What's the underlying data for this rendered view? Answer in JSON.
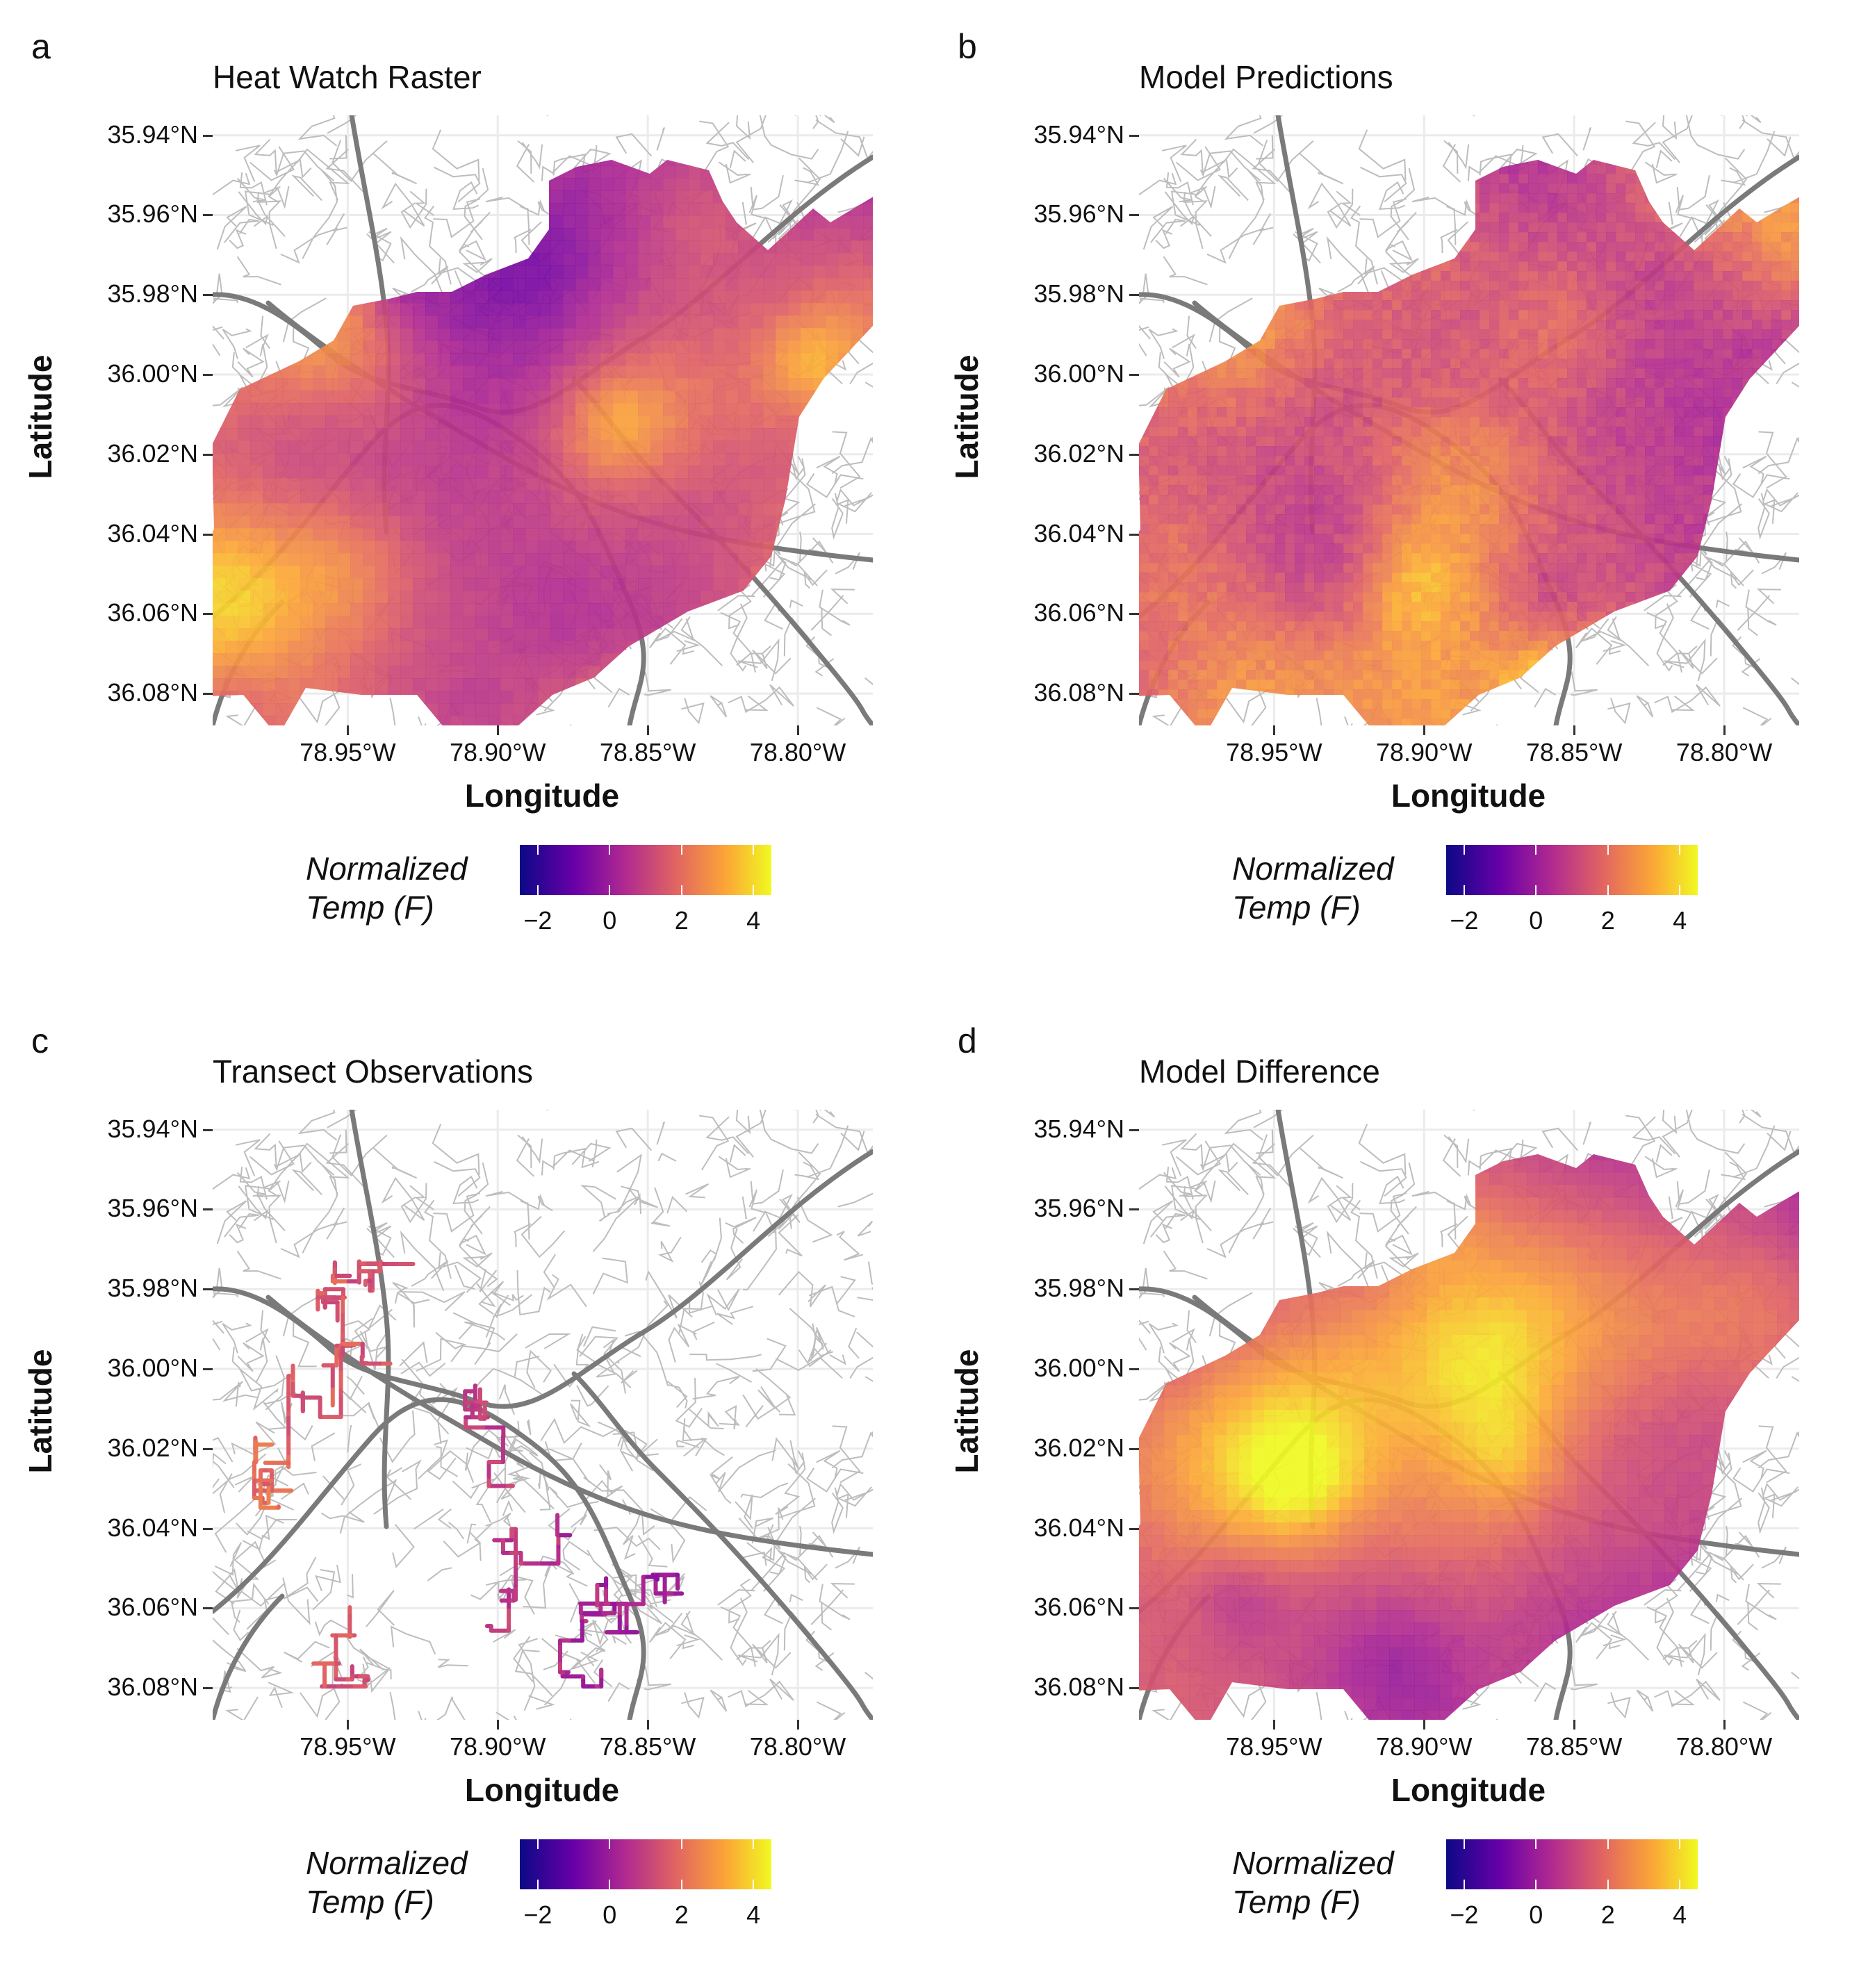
{
  "figure": {
    "axes": {
      "y_title": "Latitude",
      "x_title": "Longitude",
      "y_ticks": [
        "36.08°N",
        "36.06°N",
        "36.04°N",
        "36.02°N",
        "36.00°N",
        "35.98°N",
        "35.96°N",
        "35.94°N"
      ],
      "x_ticks": [
        "78.95°W",
        "78.90°W",
        "78.85°W",
        "78.80°W"
      ]
    },
    "legend": {
      "title_line1": "Normalized",
      "title_line2": "Temp (F)",
      "ticks": [
        "−2",
        "0",
        "2",
        "4"
      ],
      "colormap": "plasma",
      "colors": [
        "#0d0887",
        "#6a00a8",
        "#b12a90",
        "#e16462",
        "#fca636",
        "#f0f921"
      ]
    },
    "panels": [
      {
        "letter": "a",
        "title": "Heat Watch Raster",
        "kind": "raster"
      },
      {
        "letter": "b",
        "title": "Model Predictions",
        "kind": "raster"
      },
      {
        "letter": "c",
        "title": "Transect Observations",
        "kind": "transects"
      },
      {
        "letter": "d",
        "title": "Model Difference",
        "kind": "raster"
      }
    ],
    "basemap": {
      "road_color": "#bdbdbd",
      "highway_color": "#7a7a7a",
      "grid_color": "#ebebeb"
    }
  },
  "chart_data": {
    "type": "heatmap",
    "coordinate_system": "geographic",
    "xlabel": "Longitude",
    "ylabel": "Latitude",
    "xlim": [
      -78.995,
      -78.775
    ],
    "ylim": [
      35.932,
      36.085
    ],
    "x_ticks": [
      -78.95,
      -78.9,
      -78.85,
      -78.8
    ],
    "y_ticks": [
      35.94,
      35.96,
      35.98,
      36.0,
      36.02,
      36.04,
      36.06,
      36.08
    ],
    "color_scale": {
      "label": "Normalized Temp (F)",
      "range": [
        -2.5,
        4.5
      ],
      "ticks": [
        -2,
        0,
        2,
        4
      ]
    },
    "subplots": [
      "Heat Watch Raster",
      "Model Predictions",
      "Transect Observations",
      "Model Difference"
    ]
  }
}
